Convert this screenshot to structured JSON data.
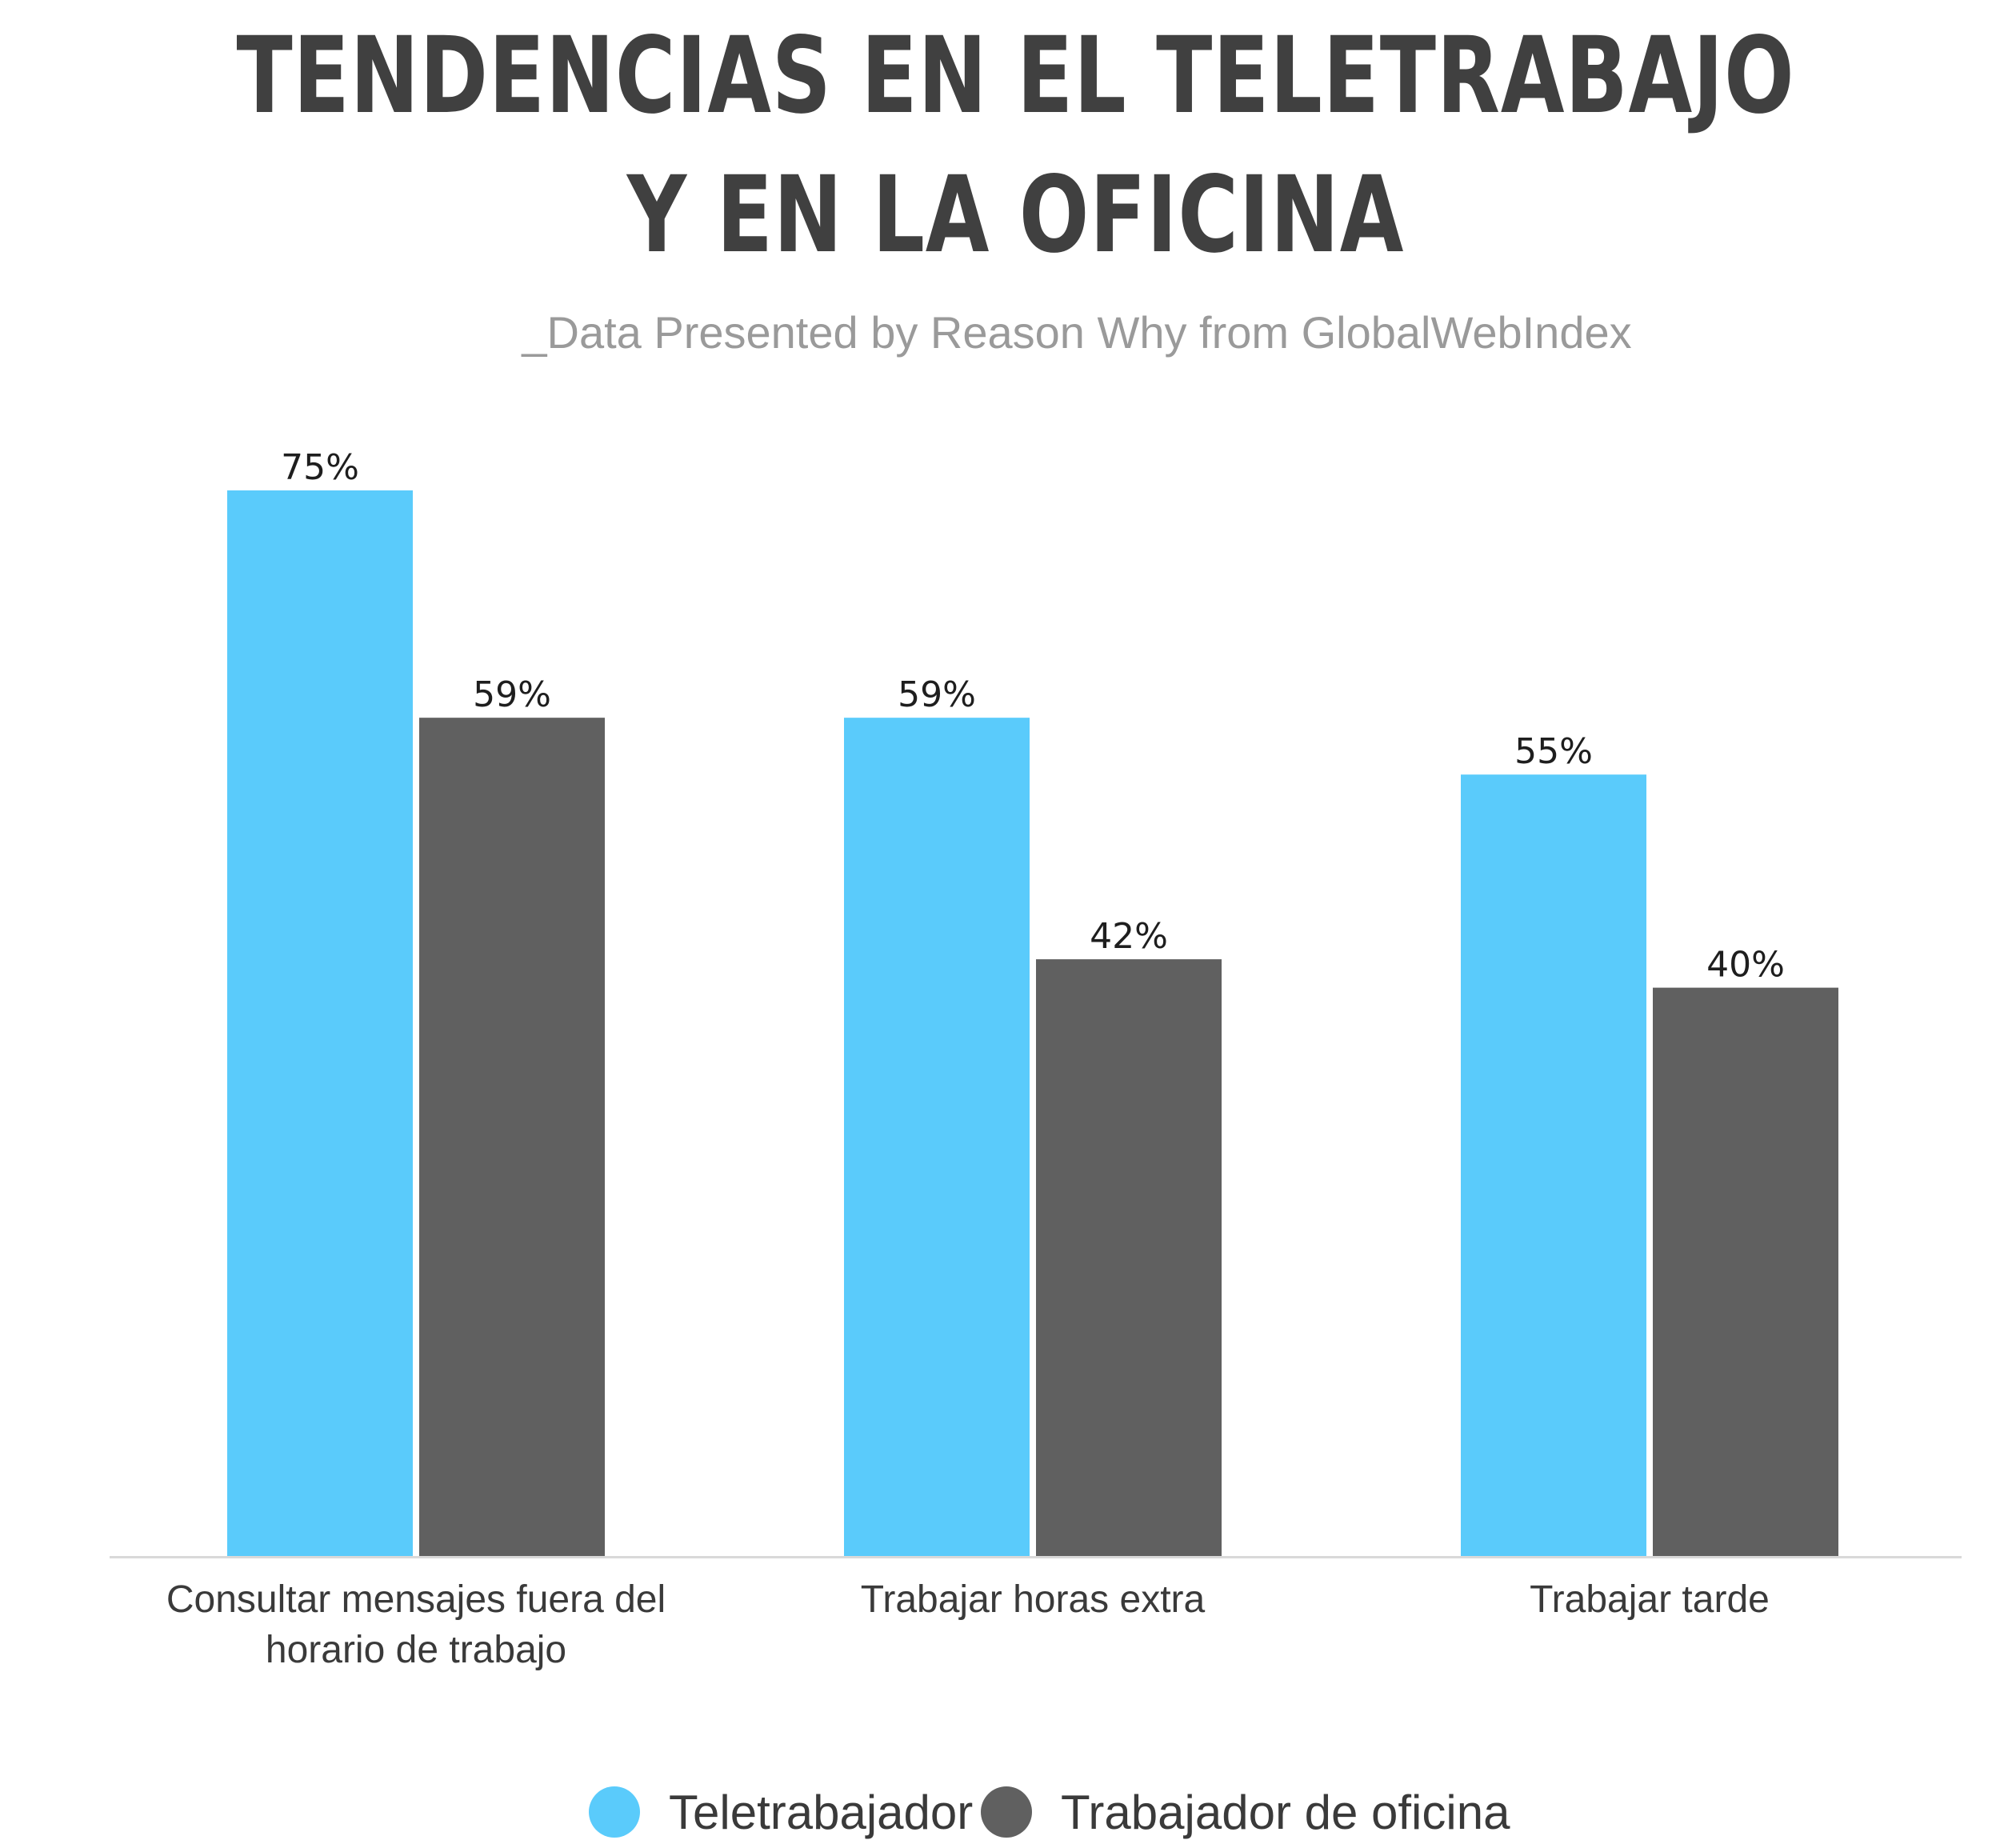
{
  "chart_data": {
    "type": "bar",
    "title_lines": [
      "TENDENCIAS EN EL TELETRABAJO",
      "Y EN LA OFICINA"
    ],
    "subtitle": "_Data Presented by Reason Why from GlobalWebIndex",
    "categories": [
      [
        "Consultar mensajes fuera del",
        "horario de trabajo"
      ],
      [
        "Trabajar horas extra"
      ],
      [
        "Trabajar tarde"
      ]
    ],
    "series": [
      {
        "name": "Teletrabajador",
        "color": "#5acbfb",
        "values": [
          75,
          59,
          55
        ],
        "labels": [
          "75%",
          "59%",
          "55%"
        ]
      },
      {
        "name": "Trabajador de oficina",
        "color": "#606060",
        "values": [
          59,
          42,
          40
        ],
        "labels": [
          "59%",
          "42%",
          "40%"
        ]
      }
    ],
    "ylim": [
      0,
      75
    ],
    "grid": false,
    "legend_position": "bottom-center",
    "axis_color": "#d9d9d9"
  }
}
